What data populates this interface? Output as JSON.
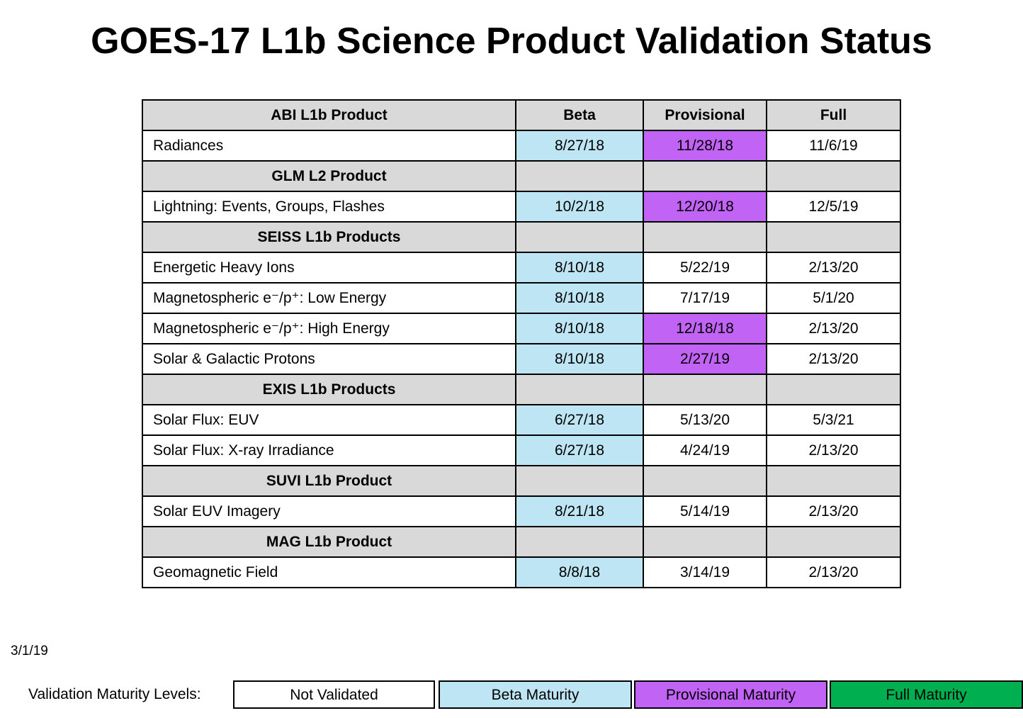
{
  "title": "GOES-17 L1b Science Product Validation Status",
  "columns": {
    "product": "ABI L1b Product",
    "beta": "Beta",
    "provisional": "Provisional",
    "full": "Full"
  },
  "rows": [
    {
      "kind": "item",
      "name": "Radiances",
      "beta": "8/27/18",
      "provisional": "11/28/18",
      "full": "11/6/19",
      "status": [
        "beta",
        "provisional",
        "none"
      ]
    },
    {
      "kind": "group",
      "name": "GLM L2 Product"
    },
    {
      "kind": "item",
      "name": "Lightning: Events, Groups, Flashes",
      "beta": "10/2/18",
      "provisional": "12/20/18",
      "full": "12/5/19",
      "status": [
        "beta",
        "provisional",
        "none"
      ]
    },
    {
      "kind": "group",
      "name": "SEISS L1b Products"
    },
    {
      "kind": "item",
      "name": "Energetic Heavy Ions",
      "beta": "8/10/18",
      "provisional": "5/22/19",
      "full": "2/13/20",
      "status": [
        "beta",
        "none",
        "none"
      ]
    },
    {
      "kind": "item",
      "name": "Magnetospheric e⁻/p⁺: Low Energy",
      "beta": "8/10/18",
      "provisional": "7/17/19",
      "full": "5/1/20",
      "status": [
        "beta",
        "none",
        "none"
      ]
    },
    {
      "kind": "item",
      "name": "Magnetospheric e⁻/p⁺: High Energy",
      "beta": "8/10/18",
      "provisional": "12/18/18",
      "full": "2/13/20",
      "status": [
        "beta",
        "provisional",
        "none"
      ]
    },
    {
      "kind": "item",
      "name": "Solar & Galactic Protons",
      "beta": "8/10/18",
      "provisional": "2/27/19",
      "full": "2/13/20",
      "status": [
        "beta",
        "provisional",
        "none"
      ]
    },
    {
      "kind": "group",
      "name": "EXIS L1b Products"
    },
    {
      "kind": "item",
      "name": "Solar Flux: EUV",
      "beta": "6/27/18",
      "provisional": "5/13/20",
      "full": "5/3/21",
      "status": [
        "beta",
        "none",
        "none"
      ]
    },
    {
      "kind": "item",
      "name": "Solar Flux: X-ray Irradiance",
      "beta": "6/27/18",
      "provisional": "4/24/19",
      "full": "2/13/20",
      "status": [
        "beta",
        "none",
        "none"
      ]
    },
    {
      "kind": "group",
      "name": "SUVI L1b Product"
    },
    {
      "kind": "item",
      "name": "Solar EUV Imagery",
      "beta": "8/21/18",
      "provisional": "5/14/19",
      "full": "2/13/20",
      "status": [
        "beta",
        "none",
        "none"
      ]
    },
    {
      "kind": "group",
      "name": "MAG L1b Product"
    },
    {
      "kind": "item",
      "name": "Geomagnetic Field",
      "beta": "8/8/18",
      "provisional": "3/14/19",
      "full": "2/13/20",
      "status": [
        "beta",
        "none",
        "none"
      ]
    }
  ],
  "date": "3/1/19",
  "legend": {
    "label": "Validation Maturity Levels:",
    "not_validated": "Not Validated",
    "beta": "Beta Maturity",
    "provisional": "Provisional Maturity",
    "full": "Full Maturity"
  },
  "colors": {
    "header_gray": "#d9d9d9",
    "beta": "#bde5f3",
    "provisional": "#c163f4",
    "full": "#00b050"
  }
}
